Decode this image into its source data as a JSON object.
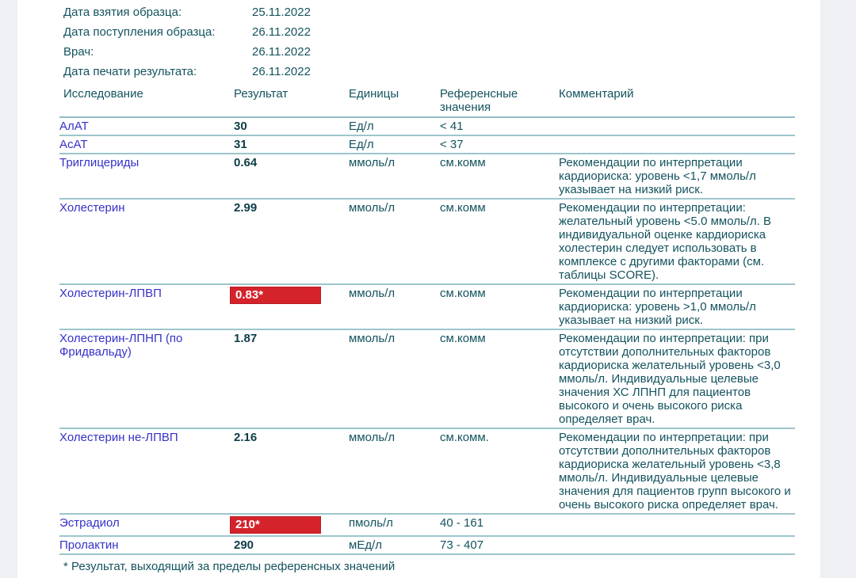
{
  "colors": {
    "paper": "#ffffff",
    "page_background": "#eef0f4",
    "label_text": "#14535e",
    "test_name_text": "#3632c8",
    "result_text": "#0d3d46",
    "rule_line": "#9dc6cc",
    "alert_background": "#d4232b",
    "alert_text": "#ffffff"
  },
  "meta": {
    "rows": [
      {
        "label": "Дата взятия образца:",
        "value": "25.11.2022"
      },
      {
        "label": "Дата поступления образца:",
        "value": "26.11.2022"
      },
      {
        "label": "Врач:",
        "value": "26.11.2022"
      },
      {
        "label": "Дата печати результата:",
        "value": "26.11.2022"
      }
    ]
  },
  "table": {
    "headers": {
      "name": "Исследование",
      "result": "Результат",
      "units": "Единицы",
      "reference": "Референсные значения",
      "comment": "Комментарий"
    },
    "rows": [
      {
        "name": "АлАТ",
        "result": "30",
        "flagged": false,
        "units": "Ед/л",
        "reference": "< 41",
        "comment": ""
      },
      {
        "name": "АсАТ",
        "result": "31",
        "flagged": false,
        "units": "Ед/л",
        "reference": "< 37",
        "comment": ""
      },
      {
        "name": "Триглицериды",
        "result": "0.64",
        "flagged": false,
        "units": "ммоль/л",
        "reference": "см.комм",
        "comment": "Рекомендации по интерпретации кардиориска: уровень <1,7 ммоль/л указывает на низкий риск."
      },
      {
        "name": "Холестерин",
        "result": "2.99",
        "flagged": false,
        "units": "ммоль/л",
        "reference": "см.комм",
        "comment": "Рекомендации по интерпретации: желательный уровень <5.0 ммоль/л. В индивидуальной оценке кардиориска холестерин следует использовать в комплексе с другими факторами (см. таблицы SCORE)."
      },
      {
        "name": "Холестерин-ЛПВП",
        "result": "0.83*",
        "flagged": true,
        "units": "ммоль/л",
        "reference": "см.комм",
        "comment": "Рекомендации по интерпретации кардиориска: уровень >1,0 ммоль/л указывает на низкий риск."
      },
      {
        "name": "Холестерин-ЛПНП (по Фридвальду)",
        "result": "1.87",
        "flagged": false,
        "units": "ммоль/л",
        "reference": "см.комм",
        "comment": "Рекомендации по интерпретации: при отсутствии дополнительных факторов кардиориска желательный уровень <3,0 ммоль/л. Индивидуальные целевые значения ХС ЛПНП для пациентов высокого и очень высокого риска определяет врач."
      },
      {
        "name": "Холестерин не-ЛПВП",
        "result": "2.16",
        "flagged": false,
        "units": "ммоль/л",
        "reference": "см.комм.",
        "comment": "Рекомендации по интерпретации: при отсутствии дополнительных факторов кардиориска желательный уровень <3,8 ммоль/л. Индивидуальные целевые значения для пациентов групп высокого и очень высокого риска определяет врач."
      },
      {
        "name": "Эстрадиол",
        "result": "210*",
        "flagged": true,
        "units": "пмоль/л",
        "reference": "40 - 161",
        "comment": ""
      },
      {
        "name": "Пролактин",
        "result": "290",
        "flagged": false,
        "units": "мЕд/л",
        "reference": "73 - 407",
        "comment": ""
      }
    ]
  },
  "footnote": "* Результат, выходящий за пределы референсных значений"
}
